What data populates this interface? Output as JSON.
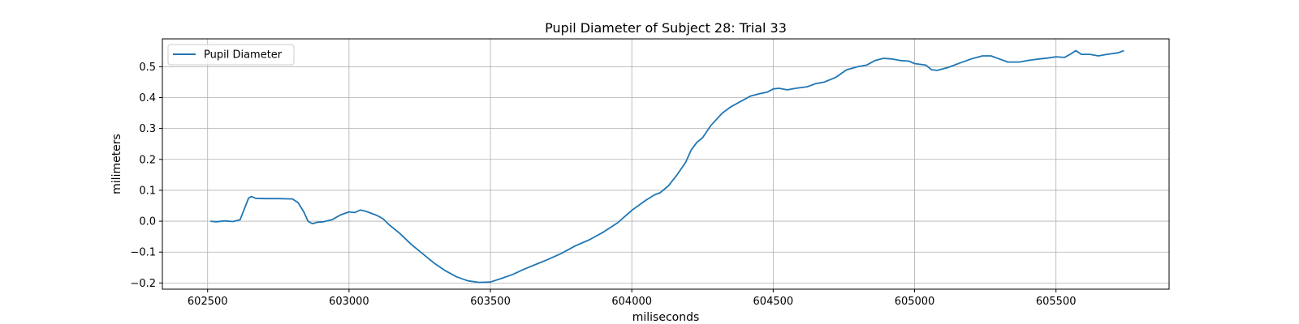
{
  "chart_data": {
    "type": "line",
    "title": "Pupil Diameter of Subject 28: Trial 33",
    "xlabel": "miliseconds",
    "ylabel": "milimeters",
    "xlim": [
      602340,
      605900
    ],
    "ylim": [
      -0.22,
      0.59
    ],
    "xticks": [
      602500,
      603000,
      603500,
      604000,
      604500,
      605000,
      605500
    ],
    "yticks": [
      -0.2,
      -0.1,
      0.0,
      0.1,
      0.2,
      0.3,
      0.4,
      0.5
    ],
    "ytick_labels": [
      "−0.2",
      "−0.1",
      "0.0",
      "0.1",
      "0.2",
      "0.3",
      "0.4",
      "0.5"
    ],
    "grid": true,
    "legend_position": "top-left",
    "series": [
      {
        "name": "Pupil Diameter",
        "color": "#1f77b4",
        "x": [
          602510,
          602530,
          602560,
          602590,
          602615,
          602630,
          602645,
          602655,
          602670,
          602700,
          602750,
          602800,
          602820,
          602840,
          602855,
          602870,
          602890,
          602910,
          602940,
          602970,
          603000,
          603020,
          603040,
          603060,
          603080,
          603100,
          603120,
          603140,
          603180,
          603220,
          603260,
          603300,
          603340,
          603380,
          603420,
          603460,
          603500,
          603540,
          603580,
          603620,
          603660,
          603700,
          603750,
          603800,
          603850,
          603900,
          603950,
          604000,
          604050,
          604080,
          604100,
          604130,
          604160,
          604190,
          604210,
          604230,
          604250,
          604280,
          604320,
          604350,
          604390,
          604420,
          604450,
          604480,
          604500,
          604520,
          604550,
          604580,
          604620,
          604650,
          604680,
          604720,
          604760,
          604800,
          604830,
          604860,
          604890,
          604920,
          604950,
          604980,
          605000,
          605040,
          605060,
          605080,
          605120,
          605160,
          605200,
          605240,
          605270,
          605300,
          605330,
          605370,
          605400,
          605440,
          605470,
          605500,
          605530,
          605550,
          605570,
          605590,
          605620,
          605650,
          605680,
          605720,
          605740
        ],
        "y": [
          0.0,
          -0.002,
          0.001,
          -0.001,
          0.005,
          0.04,
          0.075,
          0.08,
          0.074,
          0.073,
          0.073,
          0.072,
          0.06,
          0.03,
          0.0,
          -0.008,
          -0.003,
          -0.002,
          0.005,
          0.02,
          0.03,
          0.028,
          0.036,
          0.032,
          0.025,
          0.018,
          0.008,
          -0.01,
          -0.04,
          -0.075,
          -0.105,
          -0.135,
          -0.16,
          -0.18,
          -0.193,
          -0.198,
          -0.197,
          -0.185,
          -0.172,
          -0.155,
          -0.14,
          -0.125,
          -0.105,
          -0.08,
          -0.06,
          -0.035,
          -0.005,
          0.035,
          0.068,
          0.085,
          0.092,
          0.115,
          0.15,
          0.19,
          0.23,
          0.255,
          0.27,
          0.31,
          0.35,
          0.37,
          0.39,
          0.405,
          0.412,
          0.418,
          0.428,
          0.43,
          0.425,
          0.43,
          0.435,
          0.445,
          0.45,
          0.465,
          0.49,
          0.5,
          0.505,
          0.52,
          0.527,
          0.525,
          0.52,
          0.518,
          0.51,
          0.505,
          0.49,
          0.488,
          0.498,
          0.512,
          0.525,
          0.535,
          0.535,
          0.525,
          0.515,
          0.515,
          0.52,
          0.525,
          0.528,
          0.532,
          0.53,
          0.54,
          0.552,
          0.54,
          0.54,
          0.535,
          0.54,
          0.545,
          0.552
        ]
      }
    ]
  }
}
